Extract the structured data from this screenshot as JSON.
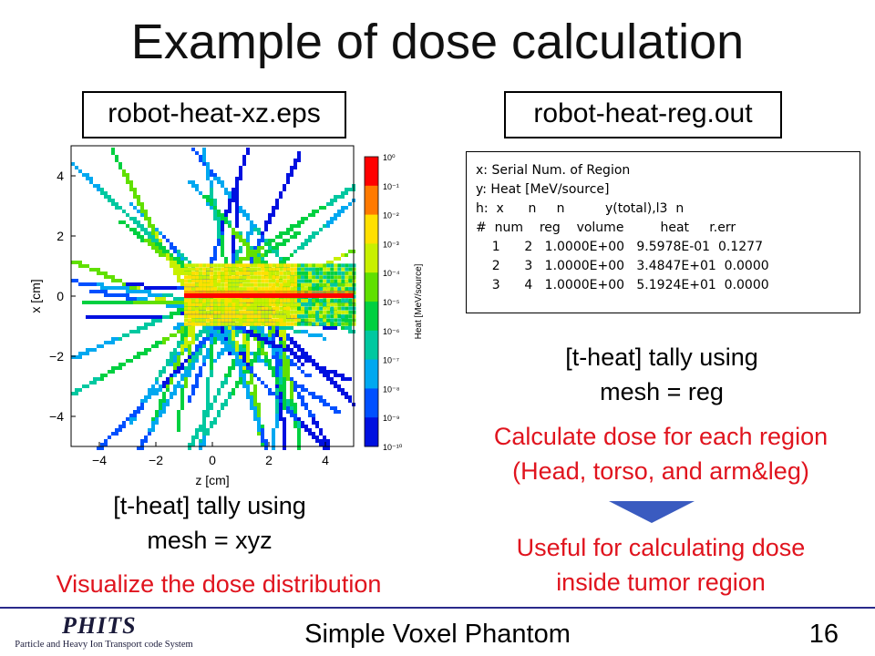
{
  "slide": {
    "title": "Example of dose calculation",
    "left_label": "robot-heat-xz.eps",
    "right_label": "robot-heat-reg.out",
    "left_caption_1": "[t-heat] tally using",
    "left_caption_2": "mesh = xyz",
    "left_red": "Visualize the dose distribution",
    "right_caption_1": "[t-heat] tally using",
    "right_caption_2": "mesh = reg",
    "right_red1_1": "Calculate dose for each region",
    "right_red1_2": "(Head, torso, and arm&leg)",
    "right_red2_1": "Useful for calculating dose",
    "right_red2_2": "inside tumor region",
    "arrow_color": "#3a5bc0"
  },
  "output_file": {
    "lines": [
      "x: Serial Num. of Region",
      "y: Heat [MeV/source]",
      "h:  x      n     n          y(total),l3  n",
      "#  num    reg    volume         heat     r.err",
      "    1      2   1.0000E+00   9.5978E-01  0.1277",
      "    2      3   1.0000E+00   3.4847E+01  0.0000",
      "    3      4   1.0000E+00   5.1924E+01  0.0000"
    ]
  },
  "chart_data": {
    "type": "heatmap",
    "xlabel": "z [cm]",
    "ylabel": "x [cm]",
    "xlim": [
      -5,
      5
    ],
    "ylim": [
      -5,
      5
    ],
    "xticks": [
      "−4",
      "−2",
      "0",
      "2",
      "4"
    ],
    "yticks": [
      "4",
      "2",
      "0",
      "−2",
      "−4"
    ],
    "colorbar_label": "Heat [MeV/source]",
    "colorbar_ticks": [
      "10⁰",
      "10⁻¹",
      "10⁻²",
      "10⁻³",
      "10⁻⁴",
      "10⁻⁵",
      "10⁻⁶",
      "10⁻⁷",
      "10⁻⁸",
      "10⁻⁹",
      "10⁻¹⁰"
    ],
    "colorbar_colors": [
      "#ff0000",
      "#ff7a00",
      "#ffe000",
      "#c8f000",
      "#60e000",
      "#00d040",
      "#00c8a0",
      "#00a8f0",
      "#0050ff",
      "#0010e0"
    ]
  },
  "footer": {
    "logo_text": "PHITS",
    "logo_subtext": "Particle and Heavy Ion Transport code System",
    "title": "Simple Voxel Phantom",
    "page": "16"
  }
}
